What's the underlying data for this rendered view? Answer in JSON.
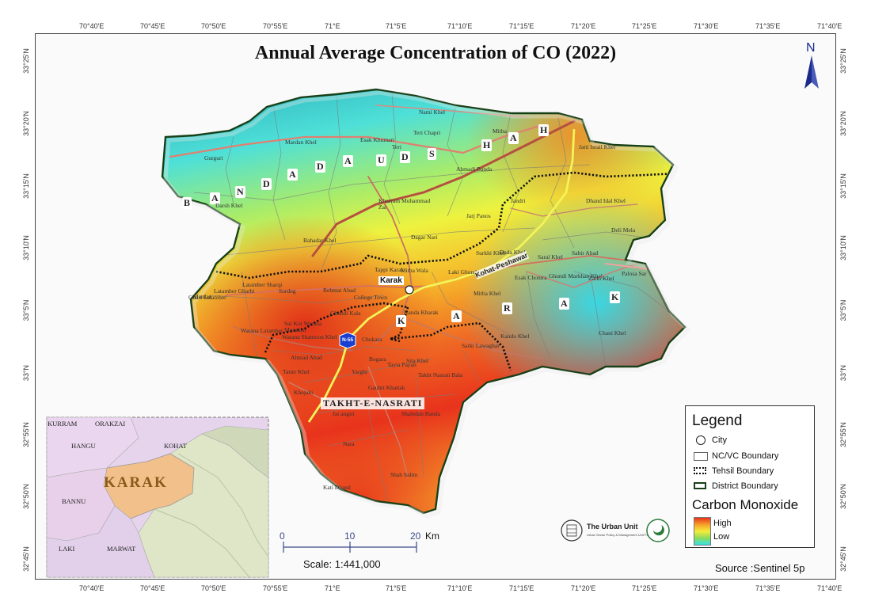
{
  "title": "Annual Average Concentration of CO (2022)",
  "lon_labels": [
    "70°40'E",
    "70°45'E",
    "70°50'E",
    "70°55'E",
    "71°E",
    "71°5'E",
    "71°10'E",
    "71°15'E",
    "71°20'E",
    "71°25'E",
    "71°30'E",
    "71°35'E",
    "71°40'E"
  ],
  "lat_labels": [
    "33°25'N",
    "33°20'N",
    "33°15'N",
    "33°10'N",
    "33°5'N",
    "33°N",
    "32°55'N",
    "32°50'N",
    "32°45'N"
  ],
  "north_label": "N",
  "tehsil_names": {
    "banda_daud_shah": [
      "B",
      "A",
      "N",
      "D",
      "A",
      "D",
      "A",
      "U",
      "D",
      "S",
      "H",
      "A",
      "H"
    ],
    "karak": [
      "K",
      "A",
      "R",
      "A",
      "K"
    ],
    "takht_e_nasrati": "TAKHT-E-NASRATI"
  },
  "places": [
    "Nami Khel",
    "Teri Chapri",
    "Mitha",
    "Jatti Israil Khel",
    "Esak Khumari",
    "Teri",
    "Ahmadi Banda",
    "Mardan Khel",
    "Gurguri",
    "Khurram Muhammad Zai",
    "Jandri",
    "Dhand Idal Khel",
    "Darsh Khel",
    "Deli Mela",
    "Jarj Panos",
    "Bahadar Khel",
    "Dagar Nari",
    "Dada Khel",
    "Sabir Abad",
    "Surkhi Khel",
    "Saral Khel",
    "Tappi Karak",
    "Mitha Wala",
    "Laki Ghundaki",
    "Esak Chontra",
    "Ghundi Markhan Khel",
    "Zarki Khel",
    "Palosa Sar",
    "Latamber Sharqi",
    "Sordog",
    "Rehmat Abad",
    "College Town",
    "Ghari Latamber",
    "Mardan",
    "Latamber Gharbi",
    "Mitha Khel",
    "Kanda Kharak",
    "Kandu Khel",
    "Chani Khel",
    "Sarki Lawaghar",
    "Warana Latamber",
    "Sai Koi Warana Mosakan",
    "Warana Shamoon Khel",
    "Ghundi Kala",
    "Chukara",
    "Ahmad Abad",
    "Sita Khel",
    "Bogara",
    "Tatter Khel",
    "Yarghi",
    "Tayia Payan",
    "Takht Nasrati Bala",
    "Khojaki",
    "Gauhri Khattak",
    "Jat angiri",
    "Shahidan Banda",
    "Nara",
    "Shah Salim",
    "Kati Dhand"
  ],
  "city": "Karak",
  "road_label": "Kohat-Peshawar",
  "highway_badge": "N-55",
  "inset": {
    "title": "KARAK",
    "districts": [
      "KURRAM",
      "ORAKZAI",
      "HANGU",
      "KOHAT",
      "BANNU",
      "LAKI",
      "MARWAT"
    ]
  },
  "scale": {
    "ticks": [
      "0",
      "10",
      "20"
    ],
    "unit": "Km",
    "label": "Scale: 1:441,000"
  },
  "legend": {
    "title": "Legend",
    "items": [
      "City",
      "NC/VC Boundary",
      "Tehsil Boundary",
      "District Boundary"
    ],
    "ramp_title": "Carbon Monoxide",
    "high": "High",
    "low": "Low"
  },
  "logo": {
    "name": "The Urban Unit",
    "subtitle": "Urban Sector Policy & Management Unit P&D Dept."
  },
  "source": "Source :Sentinel 5p",
  "colors": {
    "high": "#e8331c",
    "mid": "#f4ec3a",
    "low": "#34e0e8",
    "road": "#c8625a",
    "highway": "#f3f35a"
  }
}
